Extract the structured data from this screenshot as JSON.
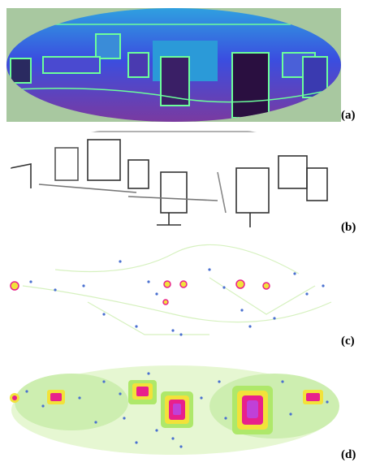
{
  "figure": {
    "panels": [
      {
        "label": "(a)",
        "content": "depth-map"
      },
      {
        "label": "(b)",
        "content": "edge-map"
      },
      {
        "label": "(c)",
        "content": "sparse-saliency-map"
      },
      {
        "label": "(d)",
        "content": "dense-saliency-map"
      }
    ]
  },
  "colors": {
    "depth_background": "#a8c8a0",
    "depth_far": "#3a4ee0",
    "depth_near": "#6a3aa0",
    "depth_edge": "#6cff9a",
    "edge_stroke": "#333333",
    "heat_low": "#aee86a",
    "heat_mid": "#f2e23a",
    "heat_high": "#e8208c",
    "heat_peak": "#c040d8",
    "keypoint": "#4a70d0"
  }
}
